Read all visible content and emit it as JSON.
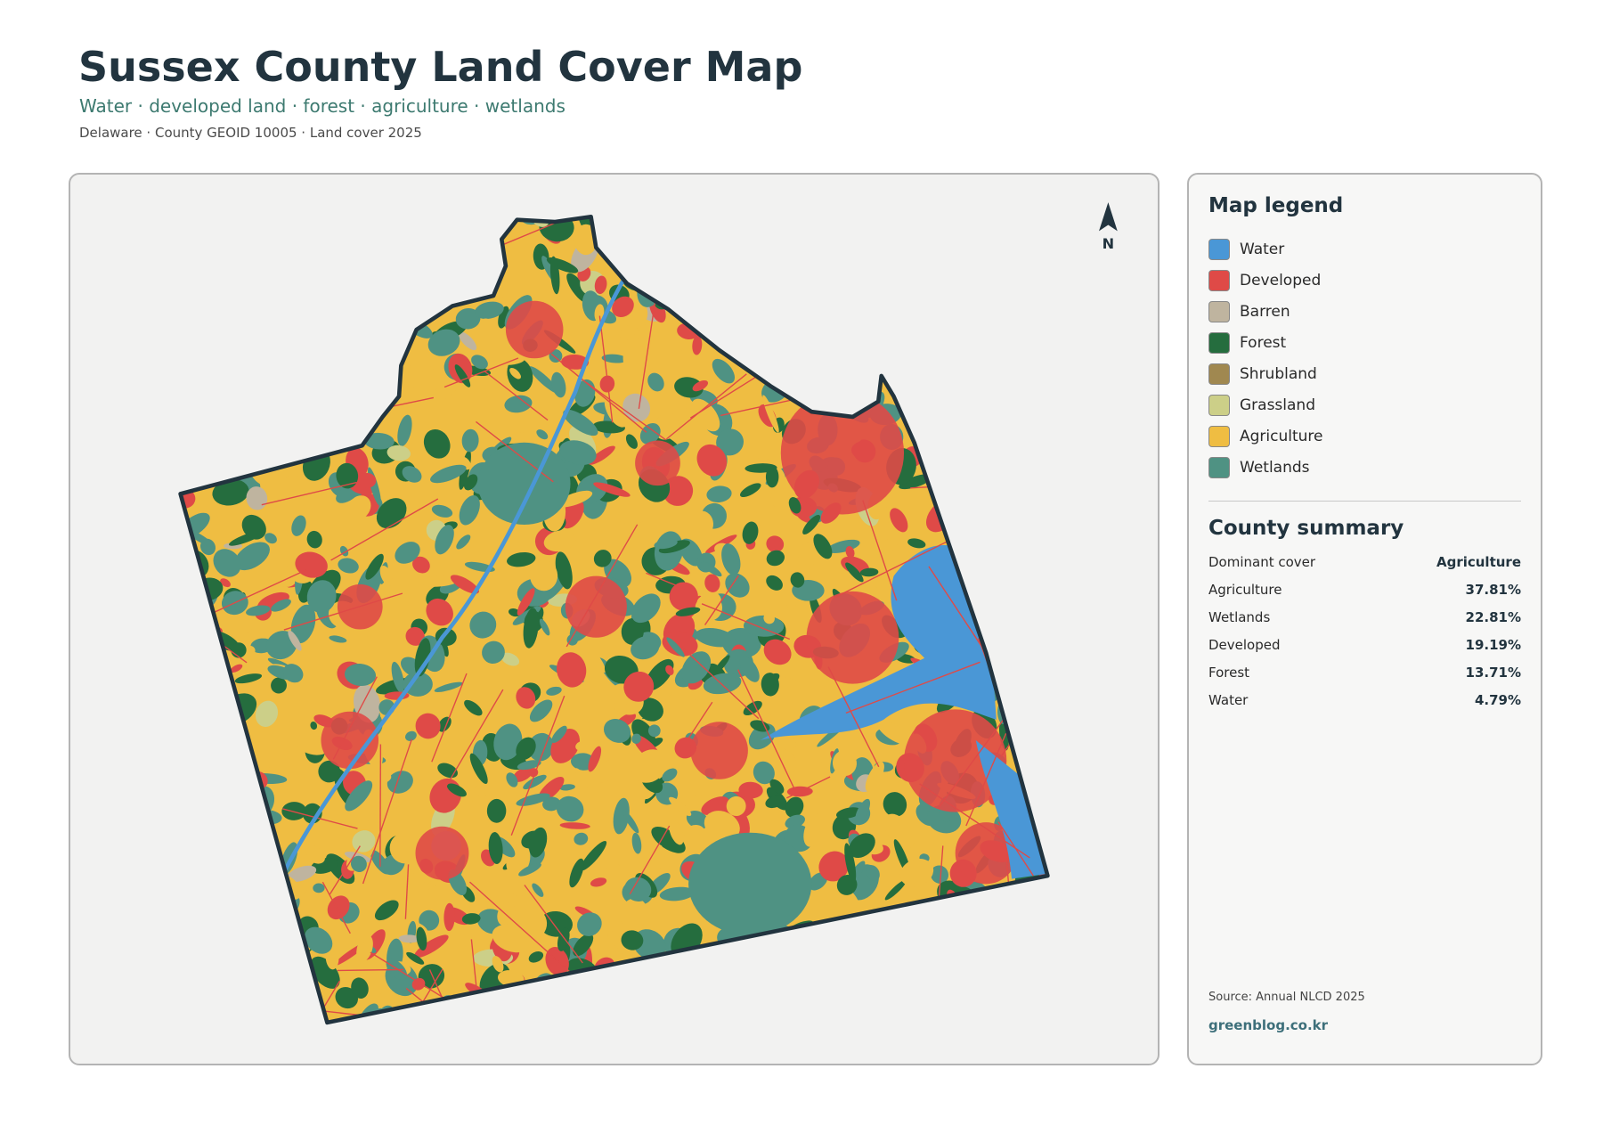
{
  "header": {
    "title": "Sussex County Land Cover Map",
    "subtitle": "Water · developed land · forest · agriculture · wetlands",
    "meta": "Delaware · County GEOID 10005 · Land cover 2025"
  },
  "map": {
    "north_label": "N"
  },
  "legend": {
    "title": "Map legend",
    "items": [
      {
        "label": "Water",
        "color": "#4a97d6"
      },
      {
        "label": "Developed",
        "color": "#df4a47"
      },
      {
        "label": "Barren",
        "color": "#bfb49f"
      },
      {
        "label": "Forest",
        "color": "#256d3e"
      },
      {
        "label": "Shrubland",
        "color": "#a08850"
      },
      {
        "label": "Grassland",
        "color": "#cccf88"
      },
      {
        "label": "Agriculture",
        "color": "#efbd42"
      },
      {
        "label": "Wetlands",
        "color": "#4f9283"
      }
    ]
  },
  "summary": {
    "title": "County summary",
    "rows": [
      [
        "Dominant cover",
        "Agriculture"
      ],
      [
        "Agriculture",
        "37.81%"
      ],
      [
        "Wetlands",
        "22.81%"
      ],
      [
        "Developed",
        "19.19%"
      ],
      [
        "Forest",
        "13.71%"
      ],
      [
        "Water",
        "4.79%"
      ]
    ]
  },
  "footer": {
    "source": "Source: Annual NLCD 2025",
    "credit": "greenblog.co.kr"
  }
}
